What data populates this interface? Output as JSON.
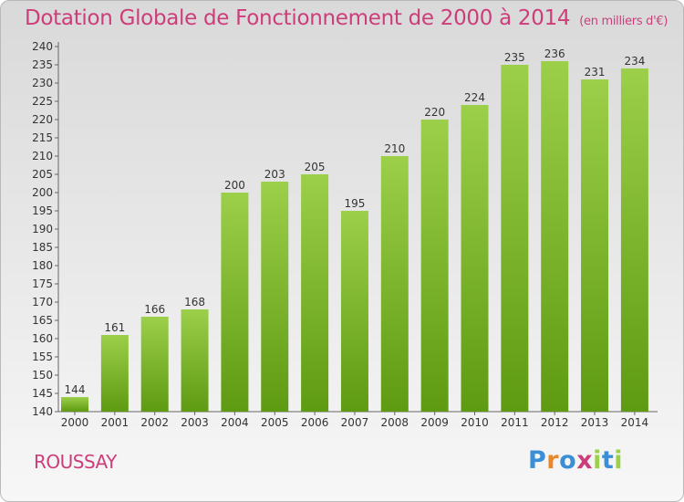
{
  "chart_data": {
    "type": "bar",
    "title": "Dotation Globale de Fonctionnement de 2000 à 2014",
    "subtitle": "(en milliers d'€)",
    "categories": [
      "2000",
      "2001",
      "2002",
      "2003",
      "2004",
      "2005",
      "2006",
      "2007",
      "2008",
      "2009",
      "2010",
      "2011",
      "2012",
      "2013",
      "2014"
    ],
    "values": [
      144,
      161,
      166,
      168,
      200,
      203,
      205,
      195,
      210,
      220,
      224,
      235,
      236,
      231,
      234
    ],
    "ylim": [
      140,
      240
    ],
    "yticks": [
      140,
      145,
      150,
      155,
      160,
      165,
      170,
      175,
      180,
      185,
      190,
      195,
      200,
      205,
      210,
      215,
      220,
      225,
      230,
      235,
      240
    ],
    "grid": false,
    "colors": {
      "bar_top": "#9ccf4a",
      "bar_bottom": "#5e9a12",
      "title": "#cc3d7a"
    }
  },
  "commune": "ROUSSAY",
  "logo": {
    "text": "Proxiti",
    "letter_colors": [
      "#3a8fd6",
      "#e8882a",
      "#3a8fd6",
      "#cc3d7a",
      "#9ccf4a",
      "#3a8fd6",
      "#9ccf4a"
    ]
  }
}
